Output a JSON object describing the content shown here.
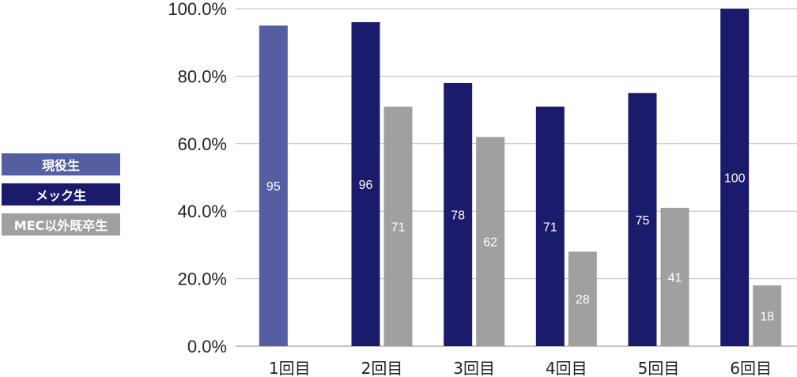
{
  "chart_data": {
    "type": "bar",
    "categories": [
      "1回目",
      "2回目",
      "3回目",
      "4回目",
      "5回目",
      "6回目"
    ],
    "series": [
      {
        "name": "現役生",
        "color": "#565ea2",
        "values": [
          95,
          null,
          null,
          null,
          null,
          null
        ]
      },
      {
        "name": "メック生",
        "color": "#1b1b6b",
        "values": [
          null,
          96,
          78,
          71,
          75,
          100
        ]
      },
      {
        "name": "MEC以外既卒生",
        "color": "#a0a0a0",
        "values": [
          null,
          71,
          62,
          28,
          41,
          18
        ]
      }
    ],
    "ylim": [
      0,
      100
    ],
    "yticks": [
      "0.0%",
      "20.0%",
      "40.0%",
      "60.0%",
      "80.0%",
      "100.0%"
    ],
    "grid": true,
    "legend_position": "left"
  }
}
